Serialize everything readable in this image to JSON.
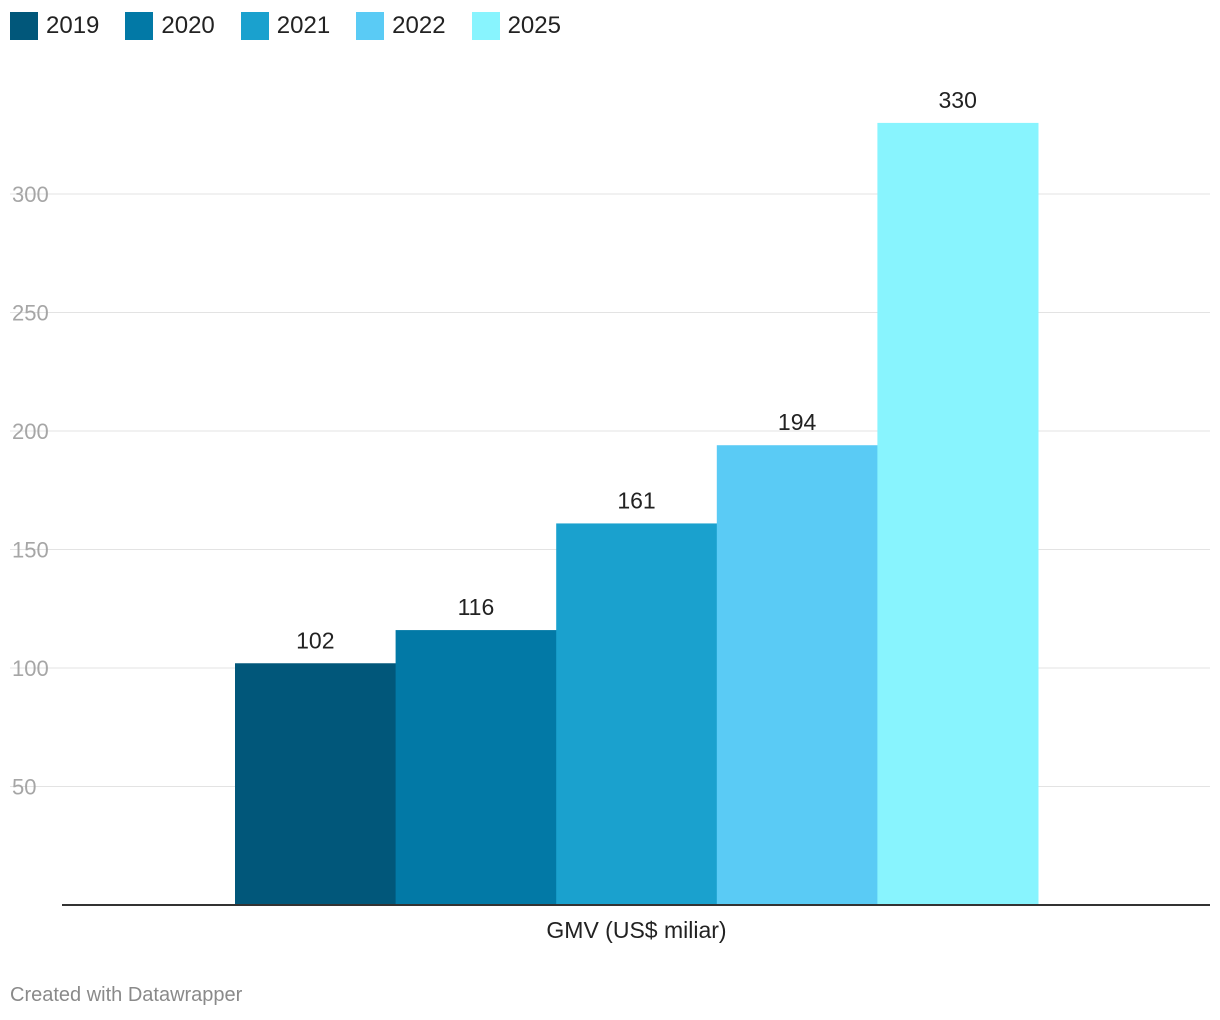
{
  "chart_data": {
    "type": "bar",
    "categories": [
      "GMV (US$ miliar)"
    ],
    "series": [
      {
        "name": "2019",
        "values": [
          102
        ],
        "color": "#01577a"
      },
      {
        "name": "2020",
        "values": [
          116
        ],
        "color": "#0279a6"
      },
      {
        "name": "2021",
        "values": [
          161
        ],
        "color": "#1aa1ce"
      },
      {
        "name": "2022",
        "values": [
          194
        ],
        "color": "#5acbf5"
      },
      {
        "name": "2025",
        "values": [
          330
        ],
        "color": "#88f4fe"
      }
    ],
    "title": "",
    "xlabel": "",
    "ylabel": "",
    "ylim": [
      0,
      345
    ],
    "yticks": [
      50,
      100,
      150,
      200,
      250,
      300
    ],
    "grid": true,
    "legend": "top-left"
  },
  "colors": {
    "gridline": "#e3e3e3",
    "axis": "#333333",
    "tick_text": "#a6a6a6"
  },
  "footer": {
    "credit": "Created with Datawrapper"
  }
}
